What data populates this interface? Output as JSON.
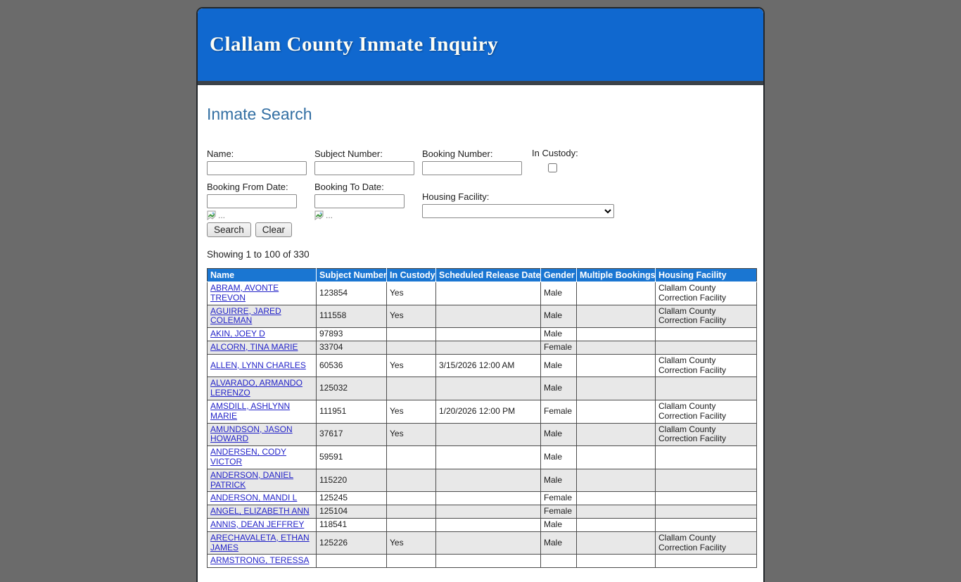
{
  "header": {
    "title": "Clallam County Inmate Inquiry"
  },
  "search": {
    "heading": "Inmate Search",
    "fields": {
      "name_label": "Name:",
      "subject_number_label": "Subject Number:",
      "booking_number_label": "Booking Number:",
      "in_custody_label": "In Custody:",
      "booking_from_label": "Booking From Date:",
      "booking_to_label": "Booking To Date:",
      "housing_facility_label": "Housing Facility:",
      "name_value": "",
      "subject_number_value": "",
      "booking_number_value": "",
      "booking_from_value": "",
      "booking_to_value": "",
      "housing_facility_selected": "",
      "in_custody_checked": false
    },
    "broken_image_alt": "...",
    "buttons": {
      "search_label": "Search",
      "clear_label": "Clear"
    },
    "results_summary": "Showing 1 to 100 of 330"
  },
  "table": {
    "columns": [
      "Name",
      "Subject Number",
      "In Custody",
      "Scheduled Release Date",
      "Gender",
      "Multiple Bookings",
      "Housing Facility"
    ],
    "rows": [
      {
        "name": "ABRAM, AVONTE TREVON",
        "subject_number": "123854",
        "in_custody": "Yes",
        "scheduled_release": "",
        "gender": "Male",
        "multiple_bookings": "",
        "housing_facility": "Clallam County Correction Facility"
      },
      {
        "name": "AGUIRRE, JARED COLEMAN",
        "subject_number": "111558",
        "in_custody": "Yes",
        "scheduled_release": "",
        "gender": "Male",
        "multiple_bookings": "",
        "housing_facility": "Clallam County Correction Facility"
      },
      {
        "name": "AKIN, JOEY D",
        "subject_number": "97893",
        "in_custody": "",
        "scheduled_release": "",
        "gender": "Male",
        "multiple_bookings": "",
        "housing_facility": ""
      },
      {
        "name": "ALCORN, TINA MARIE",
        "subject_number": "33704",
        "in_custody": "",
        "scheduled_release": "",
        "gender": "Female",
        "multiple_bookings": "",
        "housing_facility": ""
      },
      {
        "name": "ALLEN, LYNN CHARLES",
        "subject_number": "60536",
        "in_custody": "Yes",
        "scheduled_release": "3/15/2026 12:00 AM",
        "gender": "Male",
        "multiple_bookings": "",
        "housing_facility": "Clallam County Correction Facility"
      },
      {
        "name": "ALVARADO, ARMANDO LERENZO",
        "subject_number": "125032",
        "in_custody": "",
        "scheduled_release": "",
        "gender": "Male",
        "multiple_bookings": "",
        "housing_facility": ""
      },
      {
        "name": "AMSDILL, ASHLYNN MARIE",
        "subject_number": "111951",
        "in_custody": "Yes",
        "scheduled_release": "1/20/2026 12:00 PM",
        "gender": "Female",
        "multiple_bookings": "",
        "housing_facility": "Clallam County Correction Facility"
      },
      {
        "name": "AMUNDSON, JASON HOWARD",
        "subject_number": "37617",
        "in_custody": "Yes",
        "scheduled_release": "",
        "gender": "Male",
        "multiple_bookings": "",
        "housing_facility": "Clallam County Correction Facility"
      },
      {
        "name": "ANDERSEN, CODY VICTOR",
        "subject_number": "59591",
        "in_custody": "",
        "scheduled_release": "",
        "gender": "Male",
        "multiple_bookings": "",
        "housing_facility": ""
      },
      {
        "name": "ANDERSON, DANIEL PATRICK",
        "subject_number": "115220",
        "in_custody": "",
        "scheduled_release": "",
        "gender": "Male",
        "multiple_bookings": "",
        "housing_facility": ""
      },
      {
        "name": "ANDERSON, MANDI L",
        "subject_number": "125245",
        "in_custody": "",
        "scheduled_release": "",
        "gender": "Female",
        "multiple_bookings": "",
        "housing_facility": ""
      },
      {
        "name": "ANGEL, ELIZABETH ANN",
        "subject_number": "125104",
        "in_custody": "",
        "scheduled_release": "",
        "gender": "Female",
        "multiple_bookings": "",
        "housing_facility": ""
      },
      {
        "name": "ANNIS, DEAN JEFFREY",
        "subject_number": "118541",
        "in_custody": "",
        "scheduled_release": "",
        "gender": "Male",
        "multiple_bookings": "",
        "housing_facility": ""
      },
      {
        "name": "ARECHAVALETA, ETHAN JAMES",
        "subject_number": "125226",
        "in_custody": "Yes",
        "scheduled_release": "",
        "gender": "Male",
        "multiple_bookings": "",
        "housing_facility": "Clallam County Correction Facility"
      },
      {
        "name": "ARMSTRONG, TERESSA",
        "subject_number": "",
        "in_custody": "",
        "scheduled_release": "",
        "gender": "",
        "multiple_bookings": "",
        "housing_facility": ""
      }
    ]
  },
  "colors": {
    "banner_blue": "#1068cf",
    "banner_strip": "#3b4249",
    "table_header_blue": "#1a76d2",
    "link_blue": "#2323c8",
    "heading_blue": "#336fa3",
    "alt_row": "#e8e8e8",
    "page_background": "#6b6b6b"
  }
}
